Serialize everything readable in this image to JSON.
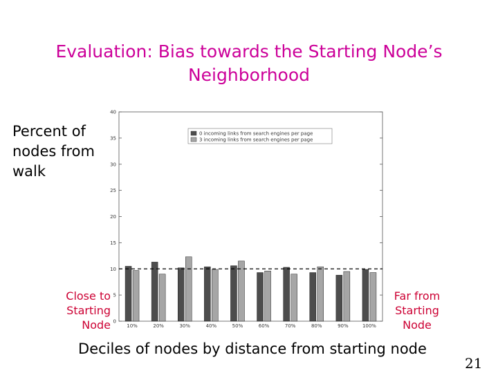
{
  "slide": {
    "title_line1": "Evaluation: Bias towards the Starting Node’s",
    "title_line2": "Neighborhood",
    "y_label_line1": "Percent of",
    "y_label_line2": "nodes from",
    "y_label_line3": "walk",
    "close_label_line1": "Close to",
    "close_label_line2": "Starting",
    "close_label_line3": "Node",
    "far_label_line1": "Far from",
    "far_label_line2": "Starting",
    "far_label_line3": "Node",
    "x_label": "Deciles of nodes by distance from starting node",
    "page_number": "21"
  },
  "colors": {
    "title": "#cc0099",
    "side_labels": "#cc0033",
    "series0": "#4d4d4d",
    "series1": "#a6a6a6"
  },
  "chart_data": {
    "type": "bar",
    "categories": [
      "10%",
      "20%",
      "30%",
      "40%",
      "50%",
      "60%",
      "70%",
      "80%",
      "90%",
      "100%"
    ],
    "series": [
      {
        "name": "0 incoming links from search engines per page",
        "values": [
          10.5,
          11.3,
          10.2,
          10.4,
          10.6,
          9.3,
          10.3,
          9.3,
          8.8,
          9.9
        ]
      },
      {
        "name": "3 incoming links from search engines per page",
        "values": [
          9.7,
          9.0,
          12.3,
          9.9,
          11.5,
          9.6,
          9.0,
          10.4,
          9.5,
          9.3
        ]
      }
    ],
    "reference_line": 10,
    "ylim": [
      0,
      40
    ],
    "yticks": [
      0,
      5,
      10,
      15,
      20,
      25,
      30,
      35,
      40
    ],
    "legend_position": "top-right",
    "grid": false
  }
}
